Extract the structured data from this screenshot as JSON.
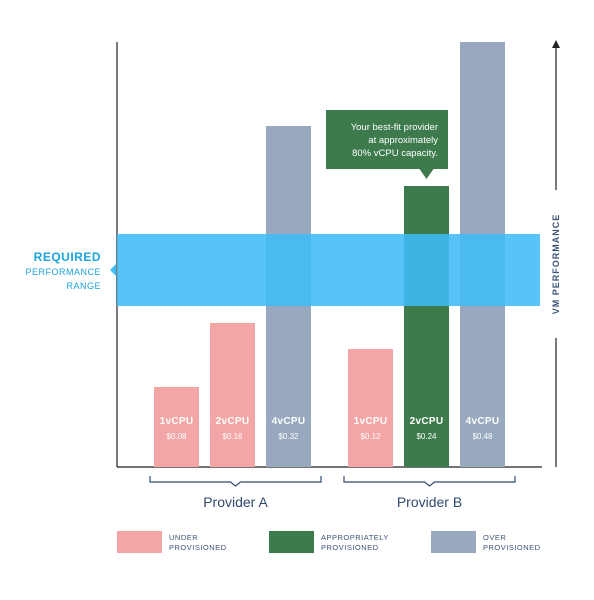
{
  "chart_data": {
    "type": "bar",
    "y_axis_label": "VM PERFORMANCE",
    "ylim": [
      0,
      425
    ],
    "band": {
      "label_bold": "REQUIRED",
      "label_line2": "PERFORMANCE",
      "label_line3": "RANGE",
      "range": [
        161,
        233
      ]
    },
    "groups": [
      {
        "name": "Provider A",
        "bars": [
          {
            "label": "1vCPU",
            "price": "$0.08",
            "value": 80,
            "status": "under"
          },
          {
            "label": "2vCPU",
            "price": "$0.16",
            "value": 144,
            "status": "under"
          },
          {
            "label": "4vCPU",
            "price": "$0.32",
            "value": 341,
            "status": "over"
          }
        ]
      },
      {
        "name": "Provider B",
        "bars": [
          {
            "label": "1vCPU",
            "price": "$0.12",
            "value": 118,
            "status": "under"
          },
          {
            "label": "2vCPU",
            "price": "$0.24",
            "value": 281,
            "status": "appropriate"
          },
          {
            "label": "4vCPU",
            "price": "$0.48",
            "value": 425,
            "status": "over"
          }
        ]
      }
    ],
    "callout": {
      "lines": [
        "Your best-fit provider",
        "at approximately",
        "80% vCPU capacity."
      ],
      "group": 1,
      "bar": 1
    },
    "legend": [
      {
        "key": "under",
        "line1": "UNDER",
        "line2": "PROVISIONED"
      },
      {
        "key": "appropriate",
        "line1": "APPROPRIATELY",
        "line2": "PROVISIONED"
      },
      {
        "key": "over",
        "line1": "OVER",
        "line2": "PROVISIONED"
      }
    ],
    "colors": {
      "under": "#f4a6a6",
      "appropriate": "#3d7a4c",
      "over": "#98a8be",
      "band": "#3fbcf8",
      "band_text": "#1ba3dc",
      "axis": "#222222",
      "bracket": "#2f4a6e",
      "provider_text": "#2f4a6e",
      "legend_text": "#3b5478",
      "callout_bg": "#3d7a4c"
    }
  }
}
